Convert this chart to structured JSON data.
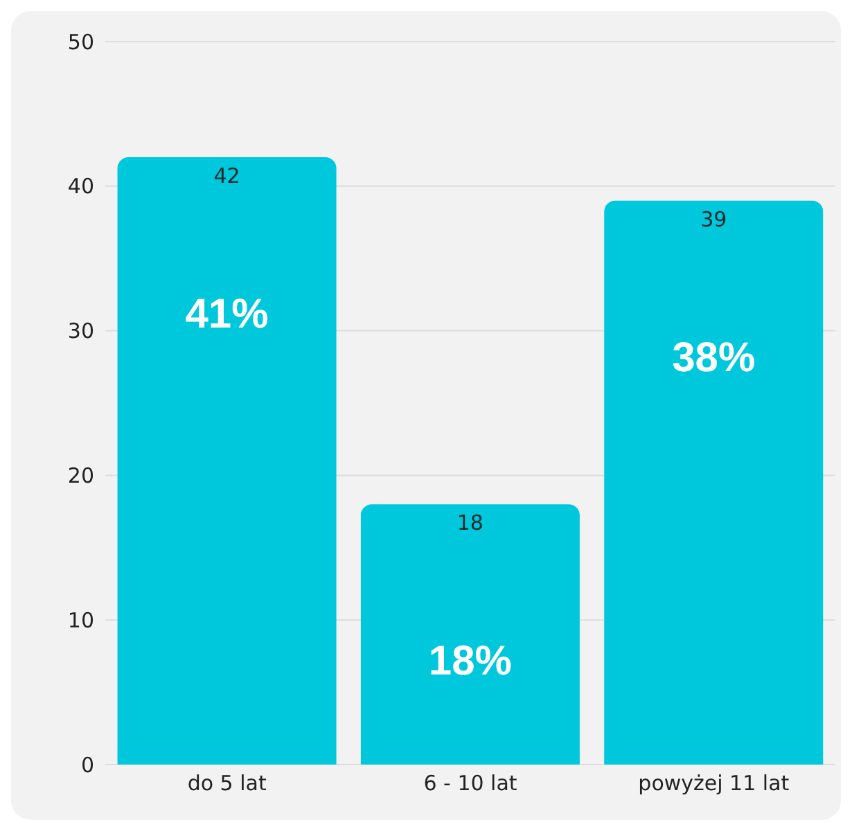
{
  "chart_data": {
    "type": "bar",
    "categories": [
      "do 5 lat",
      "6 - 10 lat",
      "powyżej 11 lat"
    ],
    "values": [
      42,
      18,
      39
    ],
    "color": "#00c8dc",
    "ylim": [
      0,
      50
    ],
    "yticks": [
      0,
      10,
      20,
      30,
      40,
      50
    ],
    "grid": "y",
    "data_labels": true,
    "annotations": [
      "41%",
      "18%",
      "38%"
    ]
  }
}
